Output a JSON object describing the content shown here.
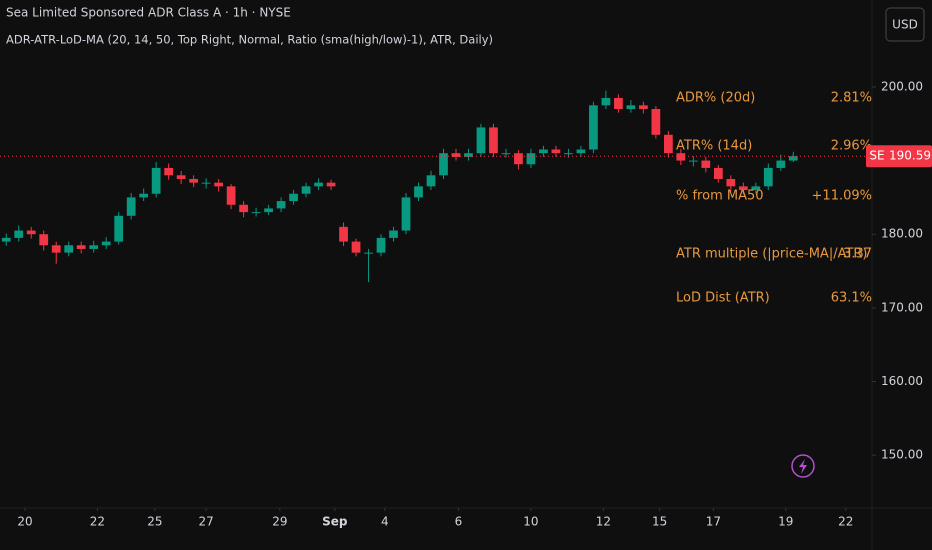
{
  "header": {
    "title": "Sea Limited Sponsored ADR Class A · 1h · NYSE",
    "indicator": "ADR-ATR-LoD-MA (20, 14, 50, Top Right, Normal, Ratio (sma(high/low)-1), ATR, Daily)",
    "currency": "USD"
  },
  "table": {
    "rows": [
      [
        "ADR% (20d)",
        "2.81%"
      ],
      [
        "ATR% (14d)",
        "2.96%"
      ],
      [
        "% from MA50",
        "+11.09%"
      ],
      [
        "ATR multiple (|price-MA|/ATR)",
        "3.37"
      ],
      [
        "LoD Dist (ATR)",
        "63.1%"
      ]
    ],
    "color": "#e8983f"
  },
  "chart_data": {
    "type": "candlestick",
    "up_color": "#089981",
    "down_color": "#f23645",
    "grid": false,
    "symbol": "SE",
    "last_price": 190.59,
    "open": [
      179,
      179.5,
      180.5,
      180,
      178.5,
      177.5,
      178.5,
      178,
      178.5,
      179,
      182.5,
      185,
      185.5,
      189,
      188,
      187.5,
      187,
      187,
      186.5,
      184,
      183,
      183,
      183.5,
      184.5,
      185.5,
      186.5,
      187,
      181,
      179,
      177.5,
      177.5,
      179.5,
      180.5,
      185,
      186.5,
      188,
      191,
      190.5,
      191,
      194.5,
      191,
      191,
      189.5,
      191,
      191.5,
      191,
      191,
      191.5,
      197.5,
      198.5,
      197,
      197.5,
      197,
      193.5,
      191,
      190,
      190,
      189,
      187.5,
      186.5,
      186,
      186.5,
      189,
      190
    ],
    "high": [
      180.1,
      181.2,
      181,
      180.5,
      179,
      179,
      179,
      179.1,
      179.6,
      183,
      185.6,
      186.2,
      189.8,
      189.6,
      188.6,
      188,
      187.6,
      187.5,
      186.8,
      184.5,
      183.6,
      184,
      185,
      186,
      187,
      187.6,
      187.4,
      181.6,
      179.4,
      178,
      180,
      181,
      185.6,
      187,
      188.6,
      191.6,
      191.6,
      191.6,
      195,
      195,
      191.6,
      191.4,
      191.6,
      192,
      192,
      191.6,
      192,
      198,
      199.5,
      199,
      198.2,
      198,
      197.4,
      194,
      191.6,
      190.6,
      190.5,
      189.4,
      188,
      187,
      187,
      189.6,
      190.8,
      191.2
    ],
    "low": [
      178.4,
      179,
      179.4,
      177.8,
      176,
      177,
      177.4,
      177.5,
      178,
      178.6,
      182,
      184.5,
      185,
      187.4,
      186.8,
      186.4,
      186.2,
      185.8,
      183.4,
      182.3,
      182.4,
      182.6,
      183,
      184,
      185,
      186,
      186,
      178.4,
      177,
      173.5,
      177,
      179,
      180,
      184.5,
      186,
      187.5,
      190,
      190,
      190.5,
      190.5,
      190.4,
      188.8,
      189,
      190.5,
      190.5,
      190.4,
      190.5,
      191,
      197,
      196.5,
      196.5,
      196.4,
      193,
      190.4,
      189.4,
      189.2,
      188.4,
      187,
      185.8,
      185.4,
      185.5,
      186,
      188.6,
      189.8
    ],
    "close": [
      179.5,
      180.5,
      180,
      178.5,
      177.5,
      178.5,
      178,
      178.5,
      179,
      182.5,
      185,
      185.5,
      189,
      188,
      187.5,
      187,
      187,
      186.5,
      184,
      183,
      183,
      183.5,
      184.5,
      185.5,
      186.5,
      187,
      186.5,
      179,
      177.5,
      177.5,
      179.5,
      180.5,
      185,
      186.5,
      188,
      191,
      190.5,
      191,
      194.5,
      191,
      191,
      189.5,
      191,
      191.5,
      191,
      191,
      191.5,
      197.5,
      198.5,
      197,
      197.5,
      197,
      193.5,
      191,
      190,
      190,
      189,
      187.5,
      186.5,
      186,
      186.5,
      189,
      190,
      190.59
    ],
    "xlim": [
      -0.5,
      69.3
    ],
    "xticks": [
      {
        "value": 1.5,
        "label": "20"
      },
      {
        "value": 7.3,
        "label": "22"
      },
      {
        "value": 11.9,
        "label": "25"
      },
      {
        "value": 16,
        "label": "27"
      },
      {
        "value": 21.9,
        "label": "29"
      },
      {
        "value": 26.3,
        "label": "Sep"
      },
      {
        "value": 30.3,
        "label": "4"
      },
      {
        "value": 36.2,
        "label": "6"
      },
      {
        "value": 42,
        "label": "10"
      },
      {
        "value": 47.8,
        "label": "12"
      },
      {
        "value": 52.3,
        "label": "15"
      },
      {
        "value": 56.6,
        "label": "17"
      },
      {
        "value": 62.4,
        "label": "19"
      },
      {
        "value": 67.2,
        "label": "22"
      }
    ],
    "ylim": [
      141.2,
      211.8
    ],
    "yticks": [
      {
        "value": 200,
        "label": "200.00"
      },
      {
        "value": 180,
        "label": "180.00"
      },
      {
        "value": 170,
        "label": "170.00"
      },
      {
        "value": 160,
        "label": "160.00"
      },
      {
        "value": 150,
        "label": "150.00"
      }
    ]
  }
}
